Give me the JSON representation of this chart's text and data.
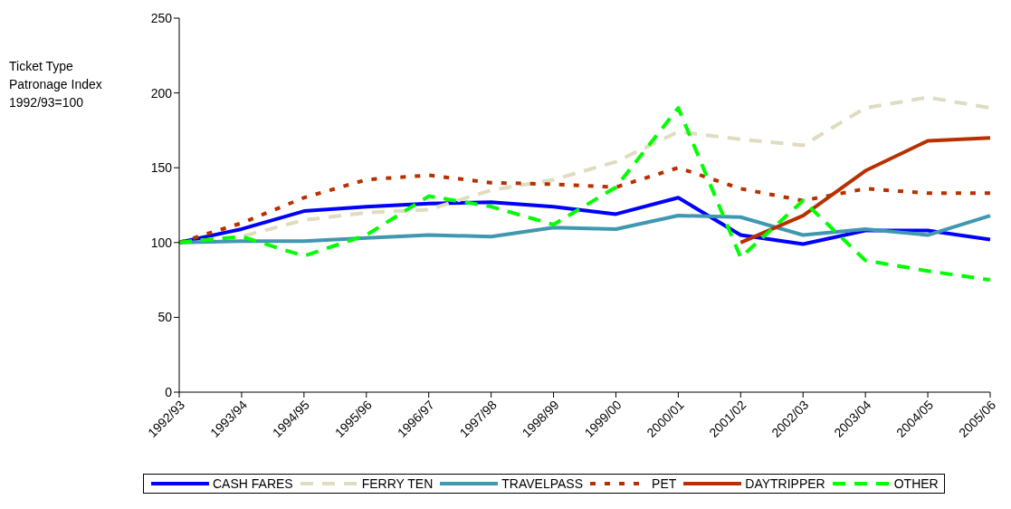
{
  "chart_data": {
    "type": "line",
    "ylabel": "Ticket Type Patronage Index 1992/93=100",
    "categories": [
      "1992/93",
      "1993/94",
      "1994/95",
      "1995/96",
      "1996/97",
      "1997/98",
      "1998/99",
      "1999/00",
      "2000/01",
      "2001/02",
      "2002/03",
      "2003/04",
      "2004/05",
      "2005/06"
    ],
    "series": [
      {
        "name": "CASH FARES",
        "color": "#0000ff",
        "line_style": "solid",
        "values": [
          100,
          109,
          121,
          124,
          126,
          127,
          124,
          119,
          130,
          105,
          99,
          108,
          108,
          102
        ]
      },
      {
        "name": "FERRY TEN",
        "color": "#e0dcc0",
        "line_style": "dashed",
        "values": [
          100,
          104,
          115,
          120,
          122,
          135,
          142,
          154,
          174,
          169,
          165,
          190,
          197,
          190
        ]
      },
      {
        "name": "TRAVELPASS",
        "color": "#4098b0",
        "line_style": "solid",
        "values": [
          100,
          101,
          101,
          103,
          105,
          104,
          110,
          109,
          118,
          117,
          105,
          109,
          105,
          118
        ]
      },
      {
        "name": "PET",
        "color": "#b83000",
        "line_style": "dotted",
        "values": [
          100,
          113,
          130,
          142,
          145,
          140,
          139,
          137,
          150,
          136,
          128,
          136,
          133,
          133
        ]
      },
      {
        "name": "DAYTRIPPER",
        "color": "#b83000",
        "line_style": "solid",
        "values": [
          null,
          null,
          null,
          null,
          null,
          null,
          null,
          null,
          null,
          100,
          118,
          148,
          168,
          170
        ]
      },
      {
        "name": "OTHER",
        "color": "#00ff00",
        "line_style": "dashed",
        "values": [
          100,
          104,
          91,
          105,
          131,
          124,
          112,
          137,
          190,
          90,
          128,
          88,
          81,
          75
        ]
      }
    ],
    "ylim": [
      0,
      250
    ],
    "yticks": [
      0,
      50,
      100,
      150,
      200,
      250
    ],
    "grid": false,
    "legend": "bottom",
    "marker": "none"
  }
}
